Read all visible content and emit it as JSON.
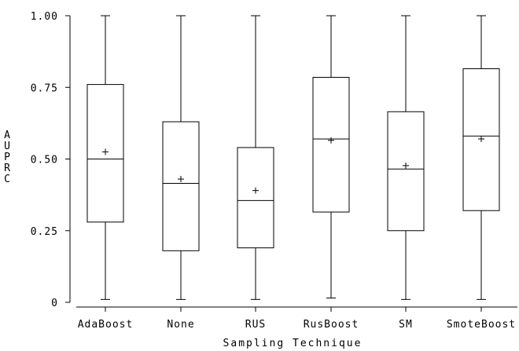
{
  "chart_data": {
    "type": "box",
    "xlabel": "Sampling Technique",
    "ylabel": "AUPRC",
    "ylim": [
      0,
      1
    ],
    "yticks": [
      "0",
      "0.25",
      "0.50",
      "0.75",
      "1.00"
    ],
    "ytick_values": [
      0,
      0.25,
      0.5,
      0.75,
      1.0
    ],
    "categories": [
      "AdaBoost",
      "None",
      "RUS",
      "RusBoost",
      "SM",
      "SmoteBoost"
    ],
    "boxes": [
      {
        "min": 0.01,
        "q1": 0.28,
        "median": 0.5,
        "q3": 0.76,
        "max": 1.0,
        "mean": 0.525
      },
      {
        "min": 0.01,
        "q1": 0.18,
        "median": 0.415,
        "q3": 0.63,
        "max": 1.0,
        "mean": 0.43
      },
      {
        "min": 0.01,
        "q1": 0.19,
        "median": 0.355,
        "q3": 0.54,
        "max": 1.0,
        "mean": 0.39
      },
      {
        "min": 0.015,
        "q1": 0.315,
        "median": 0.57,
        "q3": 0.785,
        "max": 1.0,
        "mean": 0.565
      },
      {
        "min": 0.01,
        "q1": 0.25,
        "median": 0.465,
        "q3": 0.665,
        "max": 1.0,
        "mean": 0.477
      },
      {
        "min": 0.01,
        "q1": 0.32,
        "median": 0.58,
        "q3": 0.815,
        "max": 1.0,
        "mean": 0.57
      }
    ]
  }
}
